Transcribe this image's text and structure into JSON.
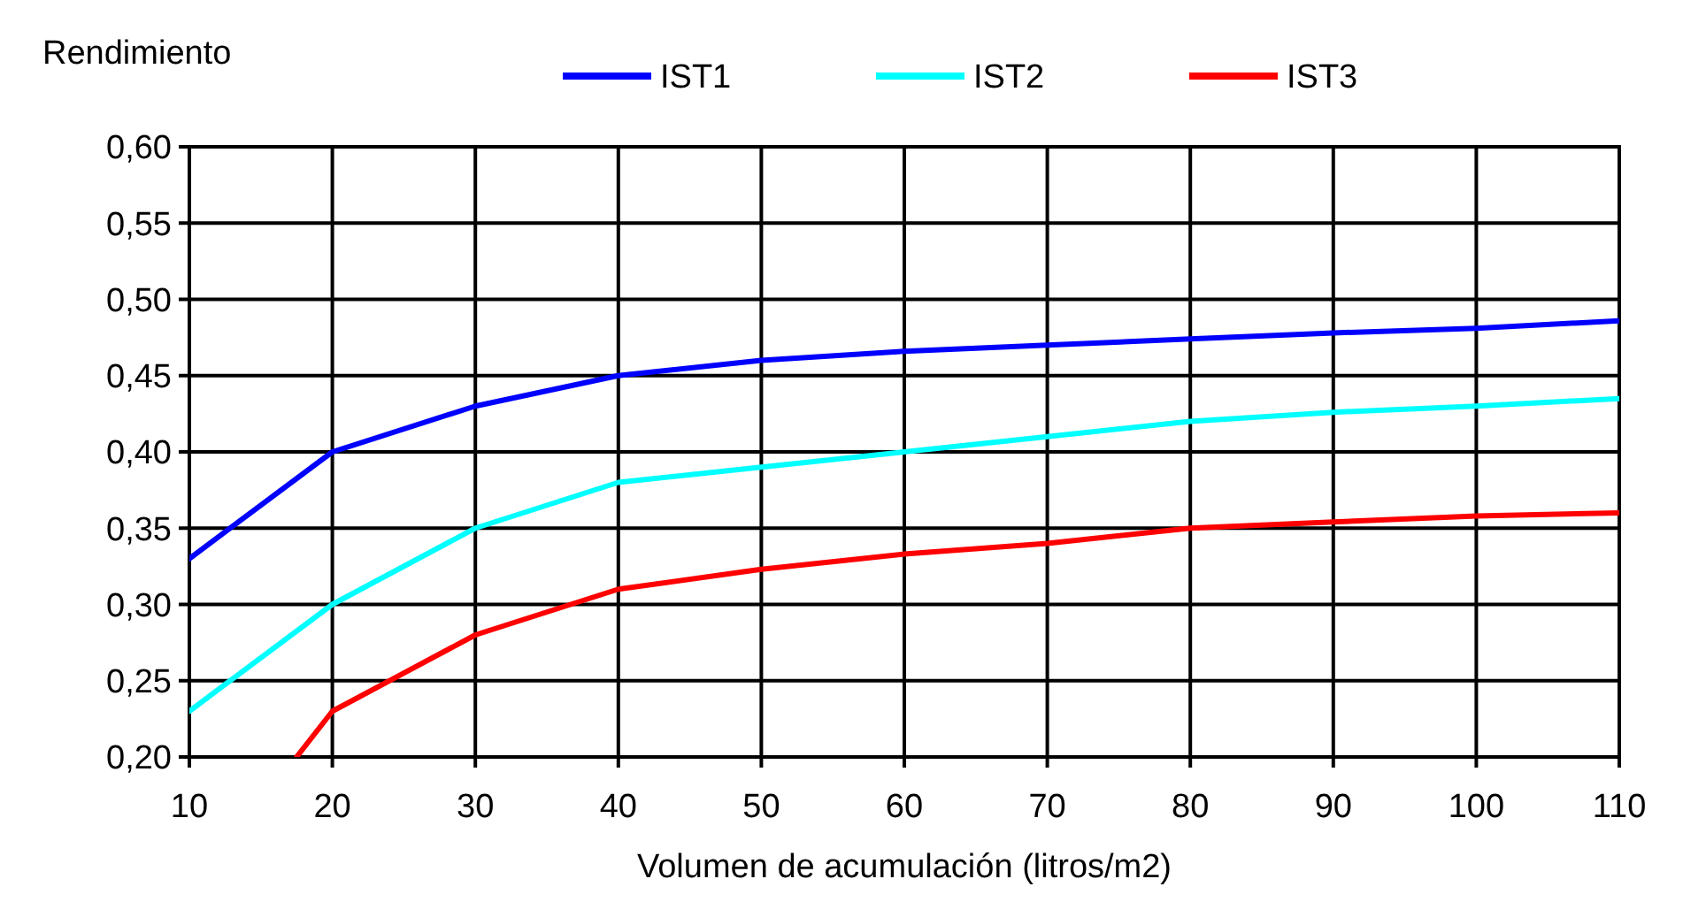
{
  "chart_data": {
    "type": "line",
    "ylabel": "Rendimiento",
    "xlabel": "Volumen de acumulación (litros/m2)",
    "x": [
      10,
      20,
      30,
      40,
      50,
      60,
      70,
      80,
      90,
      100,
      110
    ],
    "series": [
      {
        "name": "IST1",
        "color": "#0000ff",
        "values": [
          0.33,
          0.4,
          0.43,
          0.45,
          0.46,
          0.466,
          0.47,
          0.474,
          0.478,
          0.481,
          0.486
        ]
      },
      {
        "name": "IST2",
        "color": "#00ffff",
        "values": [
          0.23,
          0.3,
          0.35,
          0.38,
          0.39,
          0.4,
          0.41,
          0.42,
          0.426,
          0.43,
          0.435
        ]
      },
      {
        "name": "IST3",
        "color": "#ff0000",
        "x": [
          17.5,
          20,
          30,
          40,
          50,
          60,
          70,
          80,
          90,
          100,
          110
        ],
        "values": [
          0.2,
          0.23,
          0.28,
          0.31,
          0.323,
          0.333,
          0.34,
          0.35,
          0.354,
          0.358,
          0.36
        ]
      }
    ],
    "xlim": [
      10,
      110
    ],
    "xticks": [
      10,
      20,
      30,
      40,
      50,
      60,
      70,
      80,
      90,
      100,
      110
    ],
    "ylim": [
      0.2,
      0.6
    ],
    "yticks": [
      {
        "value": 0.2,
        "label": "0,20"
      },
      {
        "value": 0.25,
        "label": "0,25"
      },
      {
        "value": 0.3,
        "label": "0,30"
      },
      {
        "value": 0.35,
        "label": "0,35"
      },
      {
        "value": 0.4,
        "label": "0,40"
      },
      {
        "value": 0.45,
        "label": "0,45"
      },
      {
        "value": 0.5,
        "label": "0,50"
      },
      {
        "value": 0.55,
        "label": "0,55"
      },
      {
        "value": 0.6,
        "label": "0,60"
      }
    ],
    "grid": true,
    "legend": "top",
    "marker": "none",
    "line_style": "solid"
  }
}
